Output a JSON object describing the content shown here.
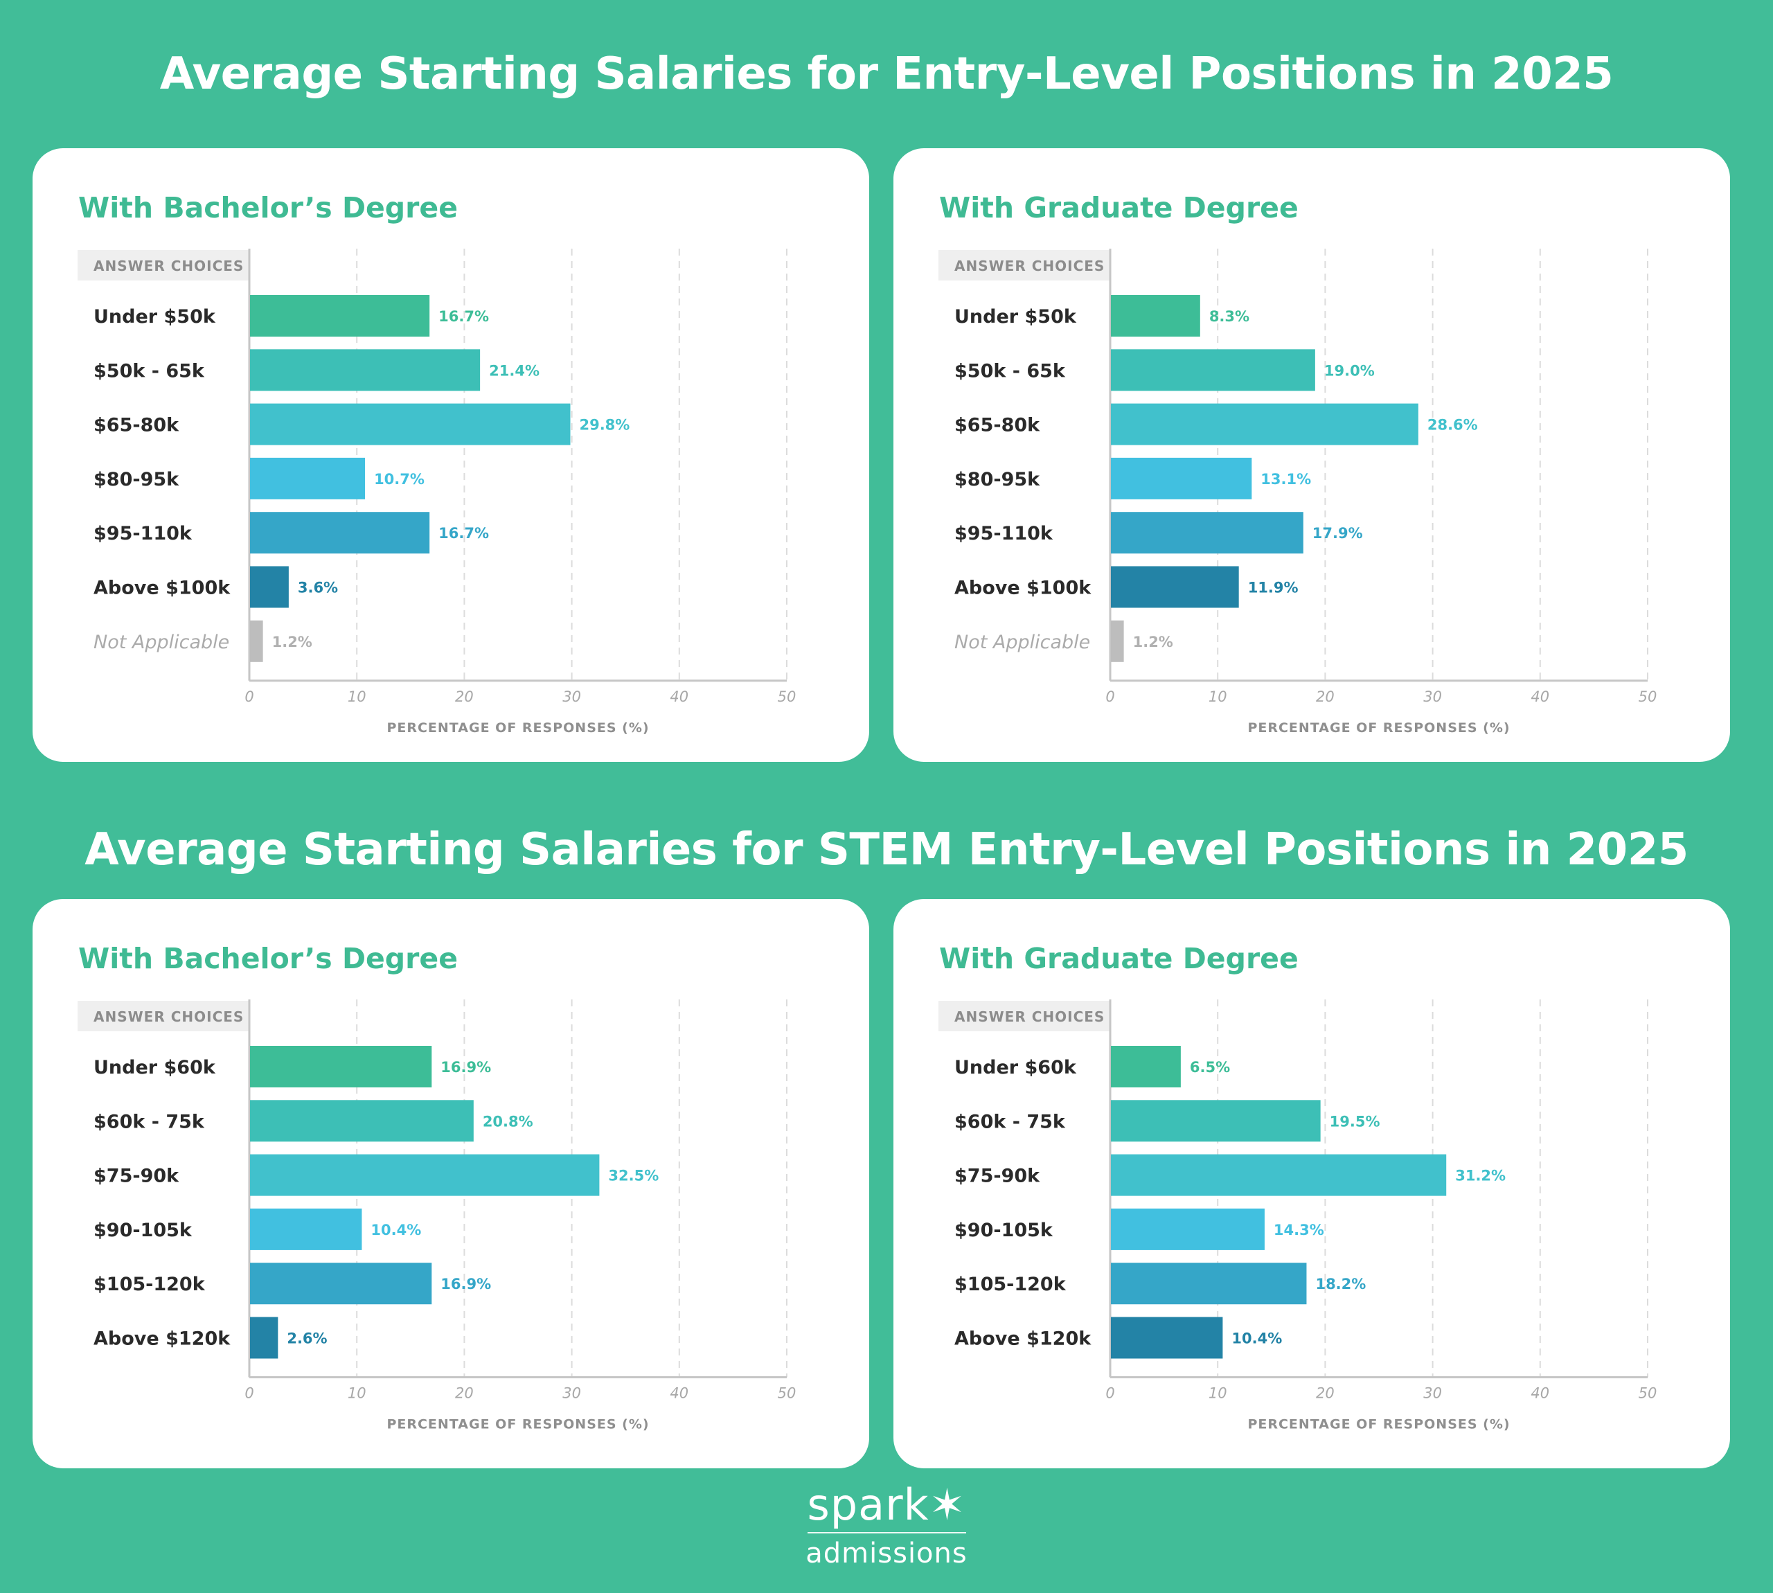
{
  "sections": [
    {
      "title": "Average Starting Salaries for Entry-Level Positions in 2025"
    },
    {
      "title": "Average Starting Salaries for STEM Entry-Level Positions in 2025"
    }
  ],
  "logo": {
    "word": "spark",
    "sub": "admissions"
  },
  "colors": {
    "background": "#41bd98",
    "title_green": "#3fba93",
    "bar_palette": [
      "#3dbd97",
      "#3dbfb6",
      "#41c1cc",
      "#41c0e0",
      "#35a6c8",
      "#2383a6",
      "#bdbdbd"
    ]
  },
  "chart_data": [
    {
      "type": "bar",
      "orientation": "horizontal",
      "title": "With Bachelor’s Degree",
      "header_label": "ANSWER CHOICES",
      "xlabel": "PERCENTAGE OF RESPONSES (%)",
      "xlim": [
        0,
        50
      ],
      "xticks": [
        "0",
        "10",
        "20",
        "30",
        "40",
        "50"
      ],
      "categories": [
        "Under $50k",
        "$50k - 65k",
        "$65-80k",
        "$80-95k",
        "$95-110k",
        "Above $100k",
        "Not Applicable"
      ],
      "values": [
        16.7,
        21.4,
        29.8,
        10.7,
        16.7,
        3.6,
        1.2
      ],
      "value_labels": [
        "16.7%",
        "21.4%",
        "29.8%",
        "10.7%",
        "16.7%",
        "3.6%",
        "1.2%"
      ],
      "grid": true
    },
    {
      "type": "bar",
      "orientation": "horizontal",
      "title": "With Graduate Degree",
      "header_label": "ANSWER CHOICES",
      "xlabel": "PERCENTAGE OF RESPONSES (%)",
      "xlim": [
        0,
        50
      ],
      "xticks": [
        "0",
        "10",
        "20",
        "30",
        "40",
        "50"
      ],
      "categories": [
        "Under $50k",
        "$50k - 65k",
        "$65-80k",
        "$80-95k",
        "$95-110k",
        "Above $100k",
        "Not Applicable"
      ],
      "values": [
        8.3,
        19.0,
        28.6,
        13.1,
        17.9,
        11.9,
        1.2
      ],
      "value_labels": [
        "8.3%",
        "19.0%",
        "28.6%",
        "13.1%",
        "17.9%",
        "11.9%",
        "1.2%"
      ],
      "grid": true
    },
    {
      "type": "bar",
      "orientation": "horizontal",
      "title": "With Bachelor’s Degree",
      "header_label": "ANSWER CHOICES",
      "xlabel": "PERCENTAGE OF RESPONSES (%)",
      "xlim": [
        0,
        50
      ],
      "xticks": [
        "0",
        "10",
        "20",
        "30",
        "40",
        "50"
      ],
      "categories": [
        "Under $60k",
        "$60k - 75k",
        "$75-90k",
        "$90-105k",
        "$105-120k",
        "Above $120k"
      ],
      "values": [
        16.9,
        20.8,
        32.5,
        10.4,
        16.9,
        2.6
      ],
      "value_labels": [
        "16.9%",
        "20.8%",
        "32.5%",
        "10.4%",
        "16.9%",
        "2.6%"
      ],
      "grid": true
    },
    {
      "type": "bar",
      "orientation": "horizontal",
      "title": "With Graduate Degree",
      "header_label": "ANSWER CHOICES",
      "xlabel": "PERCENTAGE OF RESPONSES (%)",
      "xlim": [
        0,
        50
      ],
      "xticks": [
        "0",
        "10",
        "20",
        "30",
        "40",
        "50"
      ],
      "categories": [
        "Under $60k",
        "$60k - 75k",
        "$75-90k",
        "$90-105k",
        "$105-120k",
        "Above $120k"
      ],
      "values": [
        6.5,
        19.5,
        31.2,
        14.3,
        18.2,
        10.4
      ],
      "value_labels": [
        "6.5%",
        "19.5%",
        "31.2%",
        "14.3%",
        "18.2%",
        "10.4%"
      ],
      "grid": true
    }
  ]
}
